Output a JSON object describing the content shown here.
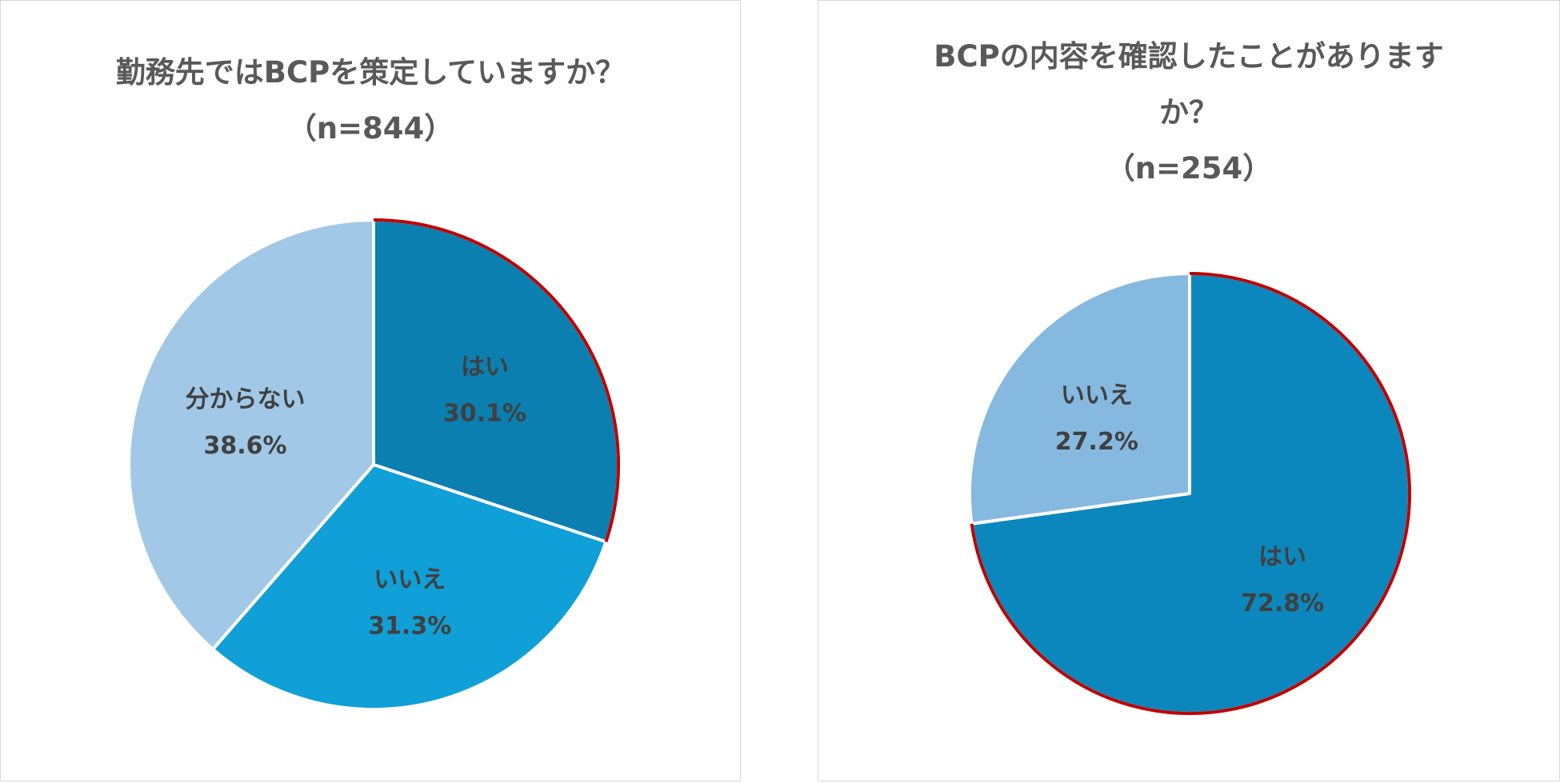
{
  "chart_data": [
    {
      "type": "pie",
      "title_lines": [
        "勤務先ではBCPを策定していますか？",
        "（n=844）"
      ],
      "slices": [
        {
          "label": "はい",
          "value": 30.1,
          "value_text": "30.1%",
          "color": "#0B7FB0"
        },
        {
          "label": "いいえ",
          "value": 31.3,
          "value_text": "31.3%",
          "color": "#109FD6"
        },
        {
          "label": "分からない",
          "value": 38.6,
          "value_text": "38.6%",
          "color": "#A1C8E6"
        }
      ],
      "highlight_slice": "はい",
      "highlight_color": "#C00000"
    },
    {
      "type": "pie",
      "title_lines": [
        "BCPの内容を確認したことがあります",
        "か？",
        "（n=254）"
      ],
      "slices": [
        {
          "label": "はい",
          "value": 72.8,
          "value_text": "72.8%",
          "color": "#0C87BD"
        },
        {
          "label": "いいえ",
          "value": 27.2,
          "value_text": "27.2%",
          "color": "#86B9E0"
        }
      ],
      "highlight_slice": "はい",
      "highlight_color": "#C00000"
    }
  ]
}
